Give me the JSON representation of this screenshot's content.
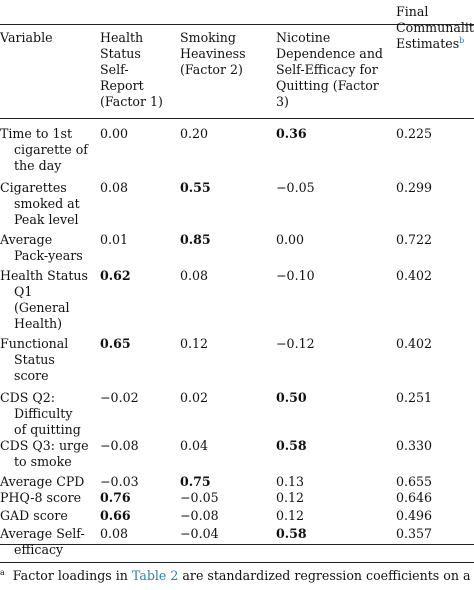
{
  "headers": {
    "variable": [
      "Variable"
    ],
    "factor1": [
      "Health",
      "Status",
      "Self-",
      "Report",
      "(Factor 1)"
    ],
    "factor2": [
      "Smoking",
      "Heaviness",
      "(Factor 2)"
    ],
    "factor3": [
      "Nicotine",
      "Dependence and",
      "Self-Efficacy for",
      "Quitting (Factor",
      "3)"
    ],
    "communality": [
      "Final",
      "Communality",
      "Estimates"
    ],
    "communality_sup": "b"
  },
  "rows": [
    {
      "variable": [
        "Time to 1st",
        "cigarette of",
        "the day"
      ],
      "f1": "0.00",
      "f2": "0.20",
      "f3": "0.36",
      "h2": "0.225",
      "bold": [
        false,
        false,
        true
      ]
    },
    {
      "variable": [
        "Cigarettes",
        "smoked at",
        "Peak level"
      ],
      "f1": "0.08",
      "f2": "0.55",
      "f3": "−0.05",
      "h2": "0.299",
      "bold": [
        false,
        true,
        false
      ]
    },
    {
      "variable": [
        "Average",
        "Pack-years"
      ],
      "f1": "0.01",
      "f2": "0.85",
      "f3": "0.00",
      "h2": "0.722",
      "bold": [
        false,
        true,
        false
      ]
    },
    {
      "variable": [
        "Health Status",
        "Q1",
        "(General",
        "Health)"
      ],
      "f1": "0.62",
      "f2": "0.08",
      "f3": "−0.10",
      "h2": "0.402",
      "bold": [
        true,
        false,
        false
      ]
    },
    {
      "variable": [
        "Functional",
        "Status",
        "score"
      ],
      "f1": "0.65",
      "f2": "0.12",
      "f3": "−0.12",
      "h2": "0.402",
      "bold": [
        true,
        false,
        false
      ]
    },
    {
      "variable": [
        "CDS Q2:",
        "Difficulty",
        "of quitting"
      ],
      "f1": "−0.02",
      "f2": "0.02",
      "f3": "0.50",
      "h2": "0.251",
      "bold": [
        false,
        false,
        true
      ]
    },
    {
      "variable": [
        "CDS Q3: urge",
        "to smoke"
      ],
      "f1": "−0.08",
      "f2": "0.04",
      "f3": "0.58",
      "h2": "0.330",
      "bold": [
        false,
        false,
        true
      ]
    },
    {
      "variable": [
        "Average CPD"
      ],
      "f1": "−0.03",
      "f2": "0.75",
      "f3": "0.13",
      "h2": "0.655",
      "bold": [
        false,
        true,
        false
      ]
    },
    {
      "variable": [
        "PHQ-8 score"
      ],
      "f1": "0.76",
      "f2": "−0.05",
      "f3": "0.12",
      "h2": "0.646",
      "bold": [
        true,
        false,
        false
      ]
    },
    {
      "variable": [
        "GAD score"
      ],
      "f1": "0.66",
      "f2": "−0.08",
      "f3": "0.12",
      "h2": "0.496",
      "bold": [
        true,
        false,
        false
      ]
    },
    {
      "variable": [
        "Average Self-",
        "efficacy"
      ],
      "f1": "0.08",
      "f2": "−0.04",
      "f3": "0.58",
      "h2": "0.357",
      "bold": [
        false,
        false,
        true
      ]
    }
  ],
  "footnote": {
    "marker": "a",
    "before": "Factor loadings in ",
    "link": "Table 2",
    "after": " are standardized regression coefficients on a sc"
  }
}
